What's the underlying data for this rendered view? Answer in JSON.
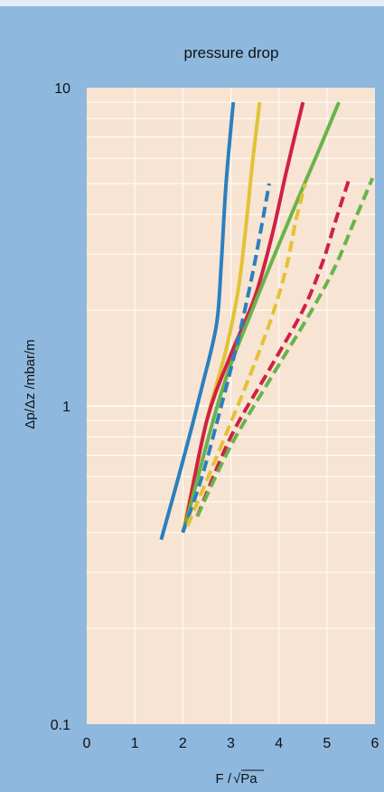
{
  "chart_data": {
    "type": "line",
    "title": "pressure drop",
    "xlabel_prefix": "F /",
    "xlabel_root": "Pa",
    "ylabel": "Δp/Δz /mbar/m",
    "xlim": [
      0,
      6
    ],
    "ylim": [
      0.1,
      10
    ],
    "yscale": "log",
    "grid": true,
    "x_ticks": [
      "0",
      "1",
      "2",
      "3",
      "4",
      "5",
      "6"
    ],
    "y_ticks": [
      {
        "value": 10,
        "label": "10"
      },
      {
        "value": 1,
        "label": "1"
      },
      {
        "value": 0.1,
        "label": "0.1"
      }
    ],
    "legend": "none",
    "series": [
      {
        "color": "#2b7fbf",
        "style": "solid",
        "x": [
          1.55,
          2.0,
          2.4,
          2.7,
          2.8,
          2.9,
          3.05
        ],
        "y": [
          0.38,
          0.67,
          1.15,
          1.8,
          2.8,
          5.0,
          9.0
        ]
      },
      {
        "color": "#e3c235",
        "style": "solid",
        "x": [
          2.0,
          2.5,
          2.9,
          3.15,
          3.3,
          3.45,
          3.6
        ],
        "y": [
          0.4,
          0.9,
          1.5,
          2.3,
          3.5,
          5.8,
          9.0
        ]
      },
      {
        "color": "#cf2143",
        "style": "solid",
        "x": [
          2.05,
          2.5,
          3.0,
          3.5,
          3.85,
          4.15,
          4.5
        ],
        "y": [
          0.42,
          0.9,
          1.45,
          2.2,
          3.4,
          5.4,
          9.0
        ]
      },
      {
        "color": "#69b34c",
        "style": "solid",
        "x": [
          2.05,
          2.8,
          3.5,
          4.2,
          4.8,
          5.25
        ],
        "y": [
          0.42,
          1.1,
          2.1,
          3.8,
          6.2,
          9.0
        ]
      },
      {
        "color": "#2b7fbf",
        "style": "dashed",
        "x": [
          2.0,
          2.4,
          2.8,
          3.1,
          3.35,
          3.55,
          3.8
        ],
        "y": [
          0.4,
          0.6,
          1.0,
          1.5,
          2.2,
          3.1,
          5.0
        ]
      },
      {
        "color": "#e3c235",
        "style": "dashed",
        "x": [
          2.1,
          2.8,
          3.4,
          3.85,
          4.15,
          4.35,
          4.55
        ],
        "y": [
          0.42,
          0.75,
          1.25,
          1.9,
          2.7,
          3.8,
          5.0
        ]
      },
      {
        "color": "#cf2143",
        "style": "dashed",
        "x": [
          2.3,
          3.0,
          3.8,
          4.5,
          4.9,
          5.2,
          5.45
        ],
        "y": [
          0.45,
          0.8,
          1.3,
          2.0,
          2.8,
          3.9,
          5.1
        ]
      },
      {
        "color": "#69b34c",
        "style": "dashed",
        "x": [
          2.3,
          3.0,
          3.8,
          4.6,
          5.15,
          5.6,
          5.95
        ],
        "y": [
          0.45,
          0.75,
          1.2,
          1.9,
          2.7,
          3.9,
          5.2
        ]
      }
    ]
  }
}
